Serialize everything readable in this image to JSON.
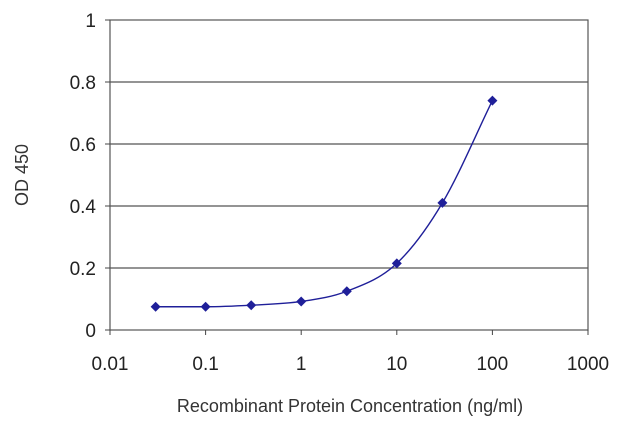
{
  "chart_data": {
    "type": "line",
    "xlabel": "Recombinant Protein Concentration (ng/ml)",
    "ylabel": "OD 450",
    "x_scale": "log",
    "xlim": [
      0.01,
      1000
    ],
    "ylim": [
      0,
      1
    ],
    "x_ticks": [
      "0.01",
      "0.1",
      "1",
      "10",
      "100",
      "1000"
    ],
    "y_ticks": [
      "0",
      "0.2",
      "0.4",
      "0.6",
      "0.8",
      "1"
    ],
    "grid": "horizontal",
    "legend": "none",
    "series": [
      {
        "x": [
          0.03,
          0.1,
          0.3,
          1,
          3,
          10,
          30,
          100
        ],
        "y": [
          0.075,
          0.075,
          0.08,
          0.092,
          0.125,
          0.215,
          0.41,
          0.74
        ]
      }
    ],
    "colors": {
      "series": "#1f1f99",
      "axis": "#444444",
      "grid": "#555555"
    }
  }
}
